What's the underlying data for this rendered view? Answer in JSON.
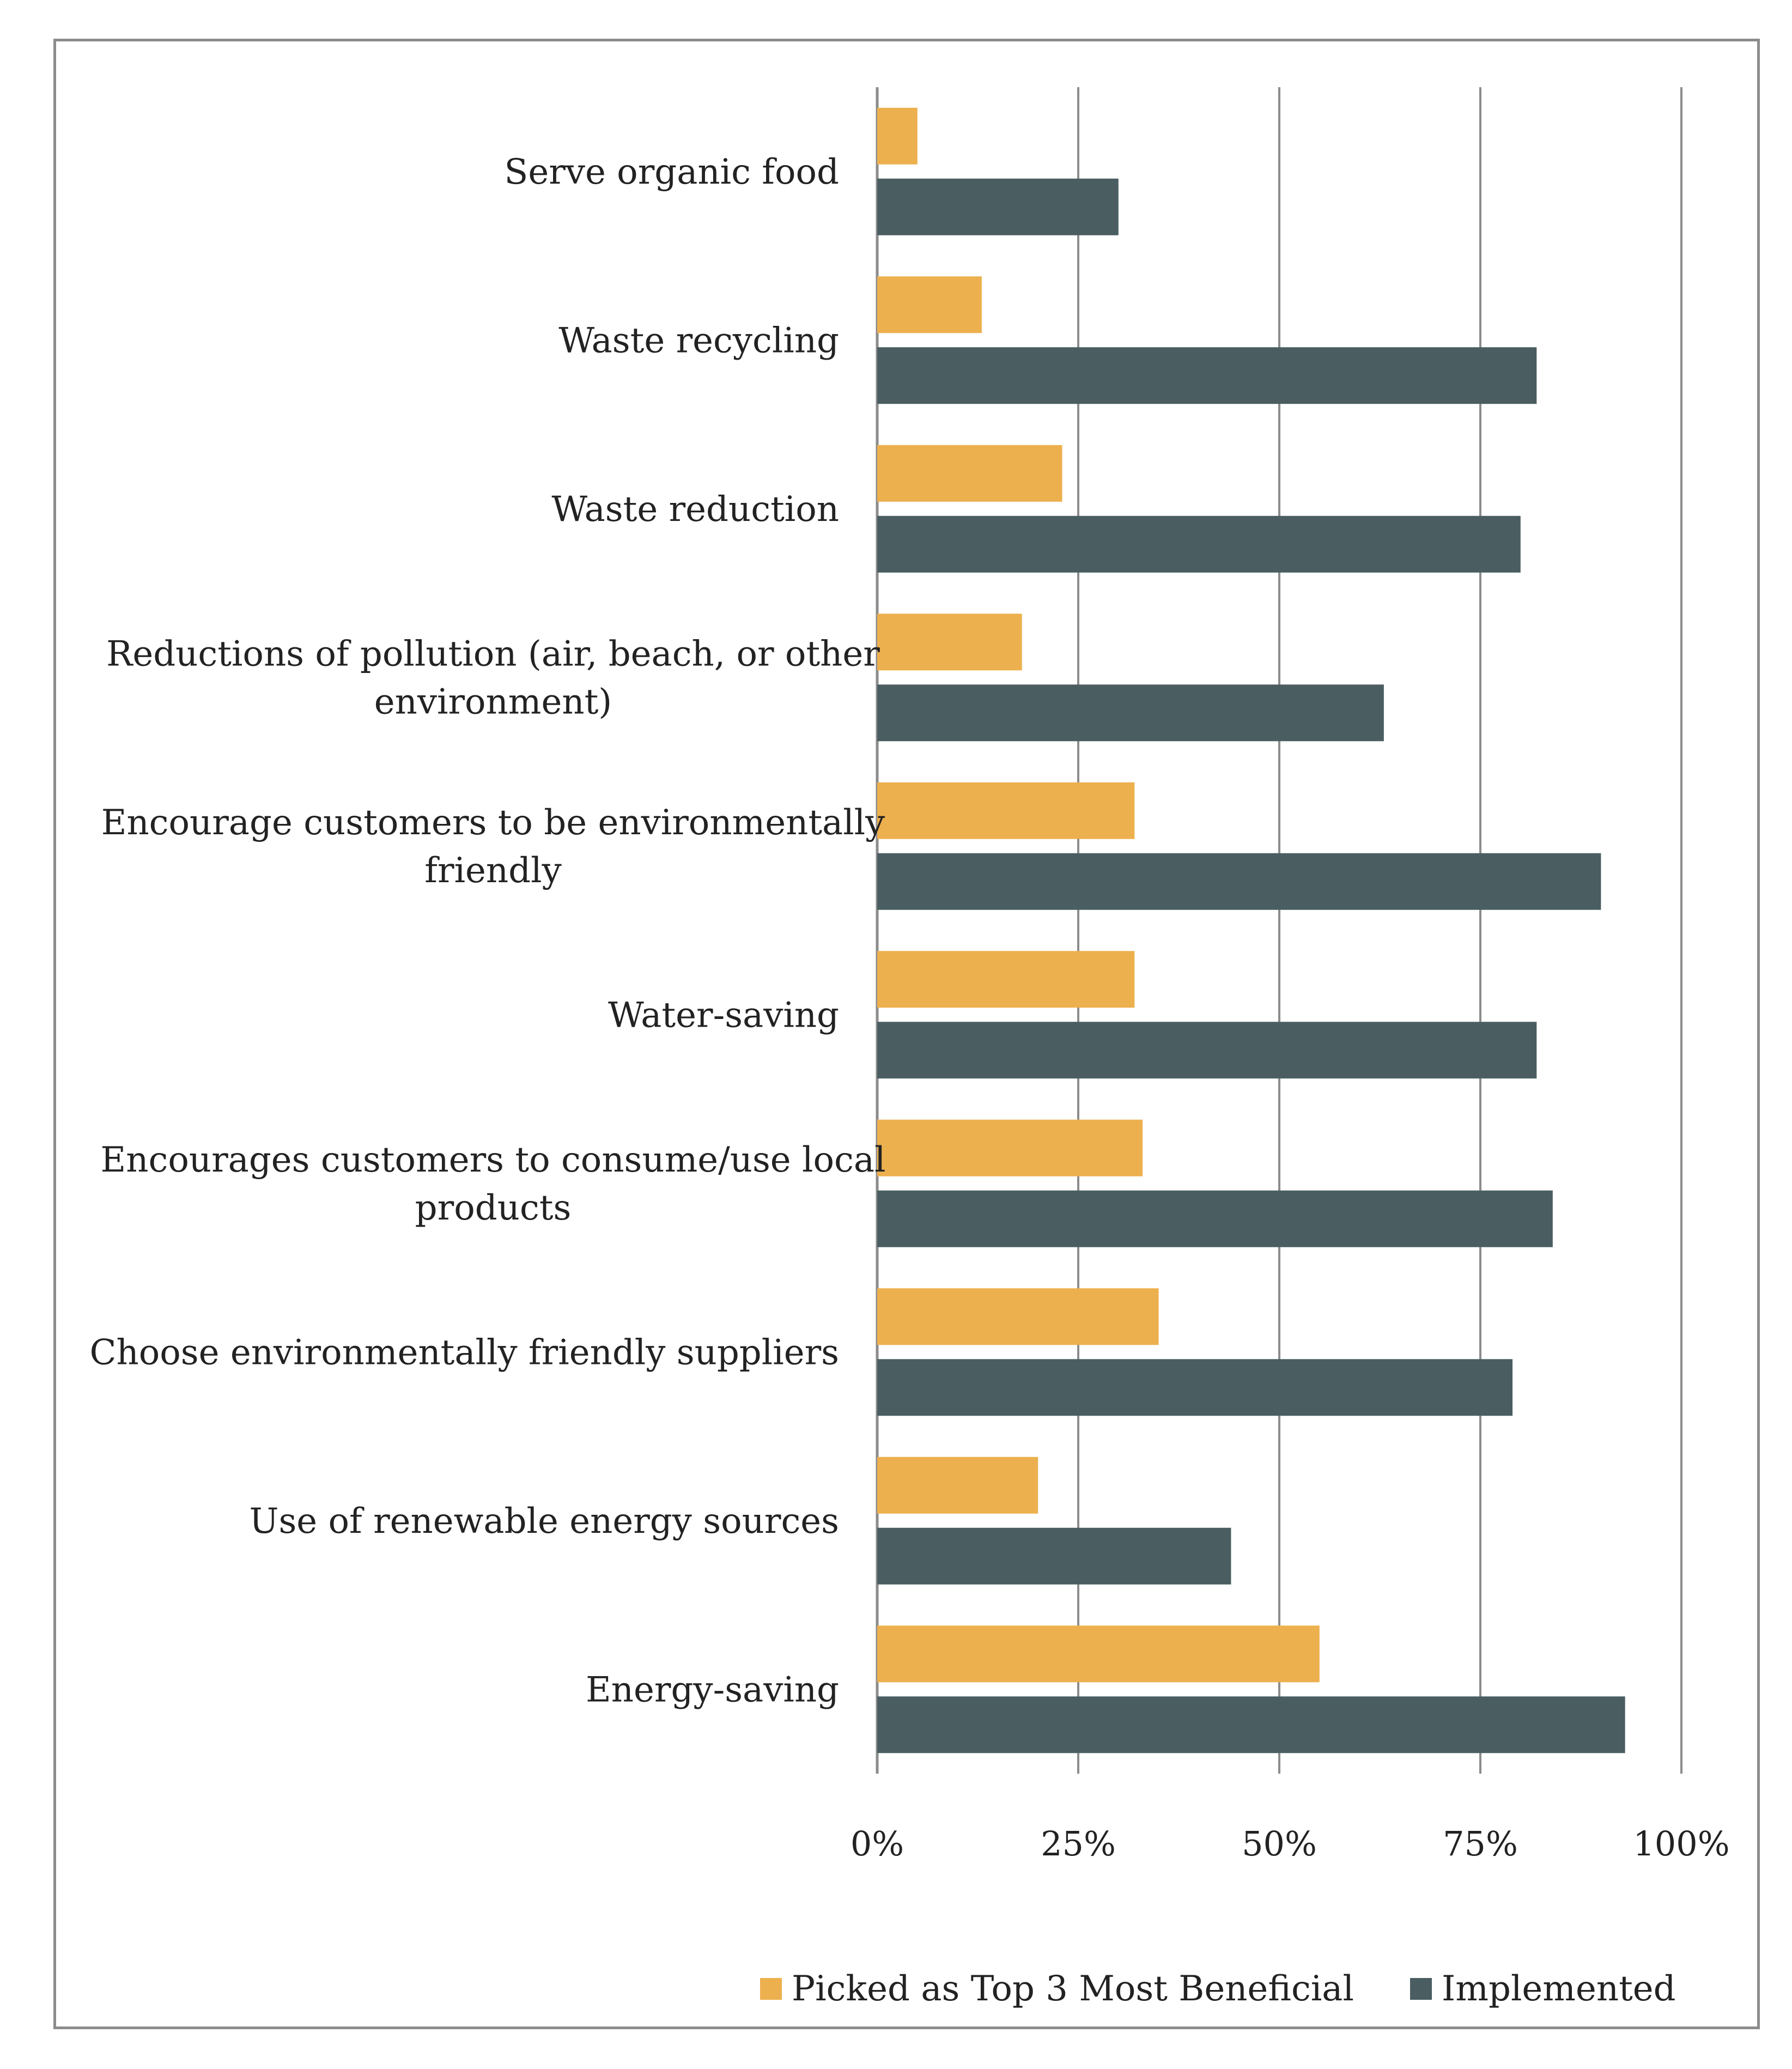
{
  "chart_data": {
    "type": "bar",
    "orientation": "horizontal",
    "categories": [
      "Serve organic food",
      "Waste recycling",
      "Waste reduction",
      "Reductions of pollution (air, beach, or other environment)",
      "Encourage customers to be environmentally friendly",
      "Water-saving",
      "Encourages customers to consume/use local products",
      "Choose environmentally friendly suppliers",
      "Use of renewable energy sources",
      "Energy-saving"
    ],
    "category_lines": [
      [
        "Serve organic food"
      ],
      [
        "Waste recycling"
      ],
      [
        "Waste reduction"
      ],
      [
        "Reductions of pollution (air, beach, or other",
        "environment)"
      ],
      [
        "Encourage customers to be environmentally",
        "friendly"
      ],
      [
        "Water-saving"
      ],
      [
        "Encourages customers to consume/use local",
        "products"
      ],
      [
        "Choose environmentally friendly suppliers"
      ],
      [
        "Use of renewable energy sources"
      ],
      [
        "Energy-saving"
      ]
    ],
    "series": [
      {
        "name": "Picked as Top 3 Most Beneficial",
        "color": "#EDB04E",
        "values": [
          5,
          13,
          23,
          18,
          32,
          32,
          33,
          35,
          20,
          55
        ]
      },
      {
        "name": "Implemented",
        "color": "#4A5E61",
        "values": [
          30,
          82,
          80,
          63,
          90,
          82,
          84,
          79,
          44,
          93
        ]
      }
    ],
    "xlim": [
      0,
      100
    ],
    "xticks": [
      0,
      25,
      50,
      75,
      100
    ],
    "xtick_labels": [
      "0%",
      "25%",
      "50%",
      "75%",
      "100%"
    ],
    "grid": "vertical",
    "legend_position": "bottom",
    "title": "",
    "xlabel": "",
    "ylabel": ""
  }
}
